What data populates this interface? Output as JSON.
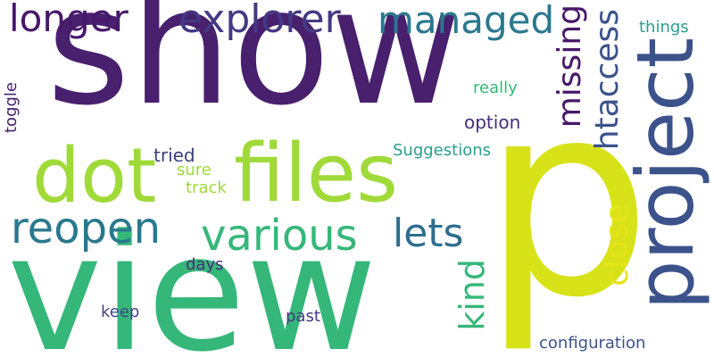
{
  "wordcloud": {
    "words": [
      {
        "key": "show",
        "text": "show",
        "color": "#48206e"
      },
      {
        "key": "view",
        "text": "view",
        "color": "#35b779"
      },
      {
        "key": "p",
        "text": "p",
        "color": "#d8e219"
      },
      {
        "key": "dot",
        "text": "dot",
        "color": "#a0da39"
      },
      {
        "key": "files",
        "text": "files",
        "color": "#a0da39"
      },
      {
        "key": "project",
        "text": "project",
        "color": "#3b528b"
      },
      {
        "key": "explorer",
        "text": "explorer",
        "color": "#443983"
      },
      {
        "key": "managed",
        "text": "managed",
        "color": "#2a788e"
      },
      {
        "key": "longer",
        "text": "longer",
        "color": "#48186a"
      },
      {
        "key": "various",
        "text": "various",
        "color": "#35b779"
      },
      {
        "key": "reopen",
        "text": "reopen",
        "color": "#2a788e"
      },
      {
        "key": "lets",
        "text": "lets",
        "color": "#2e6e8e"
      },
      {
        "key": "missing",
        "text": "missing",
        "color": "#48186a"
      },
      {
        "key": "htaccess",
        "text": "htaccess",
        "color": "#3b528b"
      },
      {
        "key": "close",
        "text": "close",
        "color": "#e5e419"
      },
      {
        "key": "kind",
        "text": "kind",
        "color": "#35b779"
      },
      {
        "key": "things",
        "text": "things",
        "color": "#2a9d8f"
      },
      {
        "key": "really",
        "text": "really",
        "color": "#35b779"
      },
      {
        "key": "option",
        "text": "option",
        "color": "#472d7b"
      },
      {
        "key": "suggestions",
        "text": "Suggestions",
        "color": "#2a9d8f"
      },
      {
        "key": "tried",
        "text": "tried",
        "color": "#3b3f7a"
      },
      {
        "key": "sure",
        "text": "sure",
        "color": "#a0da39"
      },
      {
        "key": "track",
        "text": "track",
        "color": "#a0da39"
      },
      {
        "key": "toggle",
        "text": "toggle",
        "color": "#48206e"
      },
      {
        "key": "days",
        "text": "days",
        "color": "#472d7b"
      },
      {
        "key": "keep",
        "text": "keep",
        "color": "#414487"
      },
      {
        "key": "past",
        "text": "past",
        "color": "#443983"
      },
      {
        "key": "configuration",
        "text": "configuration",
        "color": "#3b528b"
      }
    ]
  }
}
